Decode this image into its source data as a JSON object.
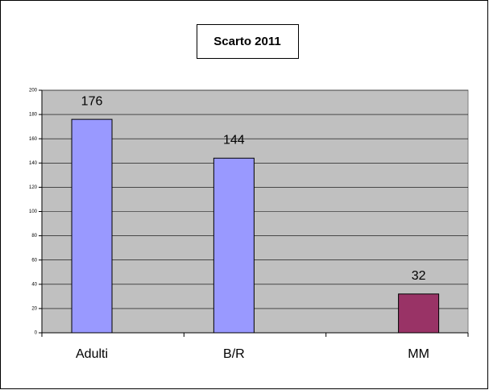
{
  "chart_data": {
    "type": "bar",
    "title": "Scarto 2011",
    "categories": [
      "Adulti",
      "B/R",
      "MM"
    ],
    "values": [
      176,
      144,
      32
    ],
    "colors": [
      "#9999ff",
      "#9999ff",
      "#993366"
    ],
    "ylim": [
      0,
      200
    ],
    "yticks": [
      0,
      20,
      40,
      60,
      80,
      100,
      120,
      140,
      160,
      180,
      200
    ],
    "grid": true
  }
}
